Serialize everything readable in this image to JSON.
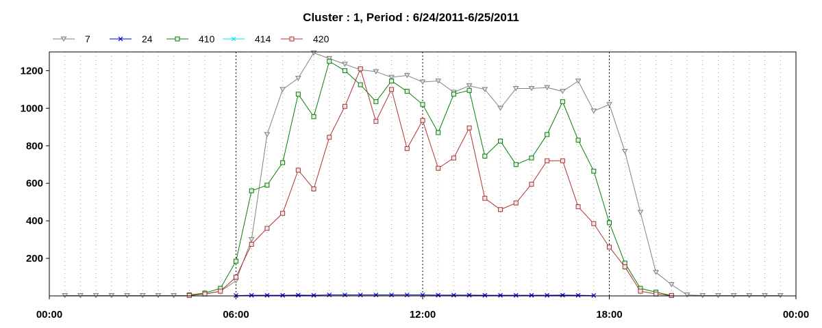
{
  "chart_data": {
    "type": "line",
    "title": "Cluster : 1, Period : 6/24/2011-6/25/2011",
    "xlabel": "",
    "ylabel": "",
    "x_range_hours": [
      0,
      24
    ],
    "xlim_labels": [
      "00:00",
      "24:00"
    ],
    "ylim": [
      0,
      1300
    ],
    "y_ticks": [
      200,
      400,
      600,
      800,
      1000,
      1200
    ],
    "x_tick_hours": [
      0,
      6,
      12,
      18,
      24
    ],
    "x_tick_labels": [
      "00:00",
      "06:00",
      "12:00",
      "18:00",
      "00:00"
    ],
    "x_minor_step_hours": 0.5,
    "grid": "dotted vertical lines every half hour, dashed lines at 06:00, 12:00 and 18:00",
    "legend_position": "top-left",
    "series": [
      {
        "name": "7",
        "color": "#808080",
        "marker": "triangle-down",
        "x": [
          "00:30",
          "01:00",
          "01:30",
          "02:00",
          "02:30",
          "03:00",
          "03:30",
          "04:00",
          "04:30",
          "05:00",
          "05:30",
          "06:00",
          "06:30",
          "07:00",
          "07:30",
          "08:00",
          "08:30",
          "09:00",
          "09:30",
          "10:00",
          "10:30",
          "11:00",
          "11:30",
          "12:00",
          "12:30",
          "13:00",
          "13:30",
          "14:00",
          "14:30",
          "15:00",
          "15:30",
          "16:00",
          "16:30",
          "17:00",
          "17:30",
          "18:00",
          "18:30",
          "19:00",
          "19:30",
          "20:00",
          "20:30",
          "21:00",
          "21:30",
          "22:00",
          "22:30",
          "23:00",
          "23:30"
        ],
        "values": [
          2,
          2,
          2,
          2,
          2,
          2,
          2,
          2,
          2,
          10,
          25,
          80,
          300,
          860,
          1100,
          1160,
          1295,
          1265,
          1235,
          1205,
          1195,
          1165,
          1175,
          1140,
          1145,
          1085,
          1120,
          1100,
          1000,
          1105,
          1105,
          1110,
          1090,
          1145,
          985,
          1020,
          770,
          445,
          125,
          60,
          5,
          2,
          2,
          2,
          2,
          2,
          2
        ]
      },
      {
        "name": "24",
        "color": "#0000cc",
        "marker": "x",
        "x": [
          "06:00",
          "06:30",
          "07:00",
          "07:30",
          "08:00",
          "08:30",
          "09:00",
          "09:30",
          "10:00",
          "10:30",
          "11:00",
          "11:30",
          "12:00",
          "12:30",
          "13:00",
          "13:30",
          "14:00",
          "14:30",
          "15:00",
          "15:30",
          "16:00",
          "16:30",
          "17:00",
          "17:30"
        ],
        "values": [
          2,
          3,
          3,
          3,
          4,
          3,
          5,
          5,
          5,
          5,
          5,
          5,
          5,
          4,
          4,
          4,
          3,
          3,
          3,
          3,
          3,
          4,
          3,
          2
        ]
      },
      {
        "name": "410",
        "color": "#008000",
        "marker": "square",
        "x": [
          "04:30",
          "05:00",
          "05:30",
          "06:00",
          "06:30",
          "07:00",
          "07:30",
          "08:00",
          "08:30",
          "09:00",
          "09:30",
          "10:00",
          "10:30",
          "11:00",
          "11:30",
          "12:00",
          "12:30",
          "13:00",
          "13:30",
          "14:00",
          "14:30",
          "15:00",
          "15:30",
          "16:00",
          "16:30",
          "17:00",
          "17:30",
          "18:00",
          "18:30",
          "19:00",
          "19:30",
          "20:00"
        ],
        "values": [
          5,
          15,
          40,
          185,
          560,
          590,
          710,
          1075,
          955,
          1250,
          1200,
          1125,
          1035,
          1145,
          1090,
          1020,
          870,
          1075,
          1095,
          745,
          825,
          700,
          735,
          860,
          1035,
          830,
          665,
          390,
          175,
          40,
          20,
          2
        ]
      },
      {
        "name": "414",
        "color": "#00e5e5",
        "marker": "x",
        "x": [],
        "values": []
      },
      {
        "name": "420",
        "color": "#b03030",
        "marker": "square",
        "x": [
          "04:30",
          "05:00",
          "05:30",
          "06:00",
          "06:30",
          "07:00",
          "07:30",
          "08:00",
          "08:30",
          "09:00",
          "09:30",
          "10:00",
          "10:30",
          "11:00",
          "11:30",
          "12:00",
          "12:30",
          "13:00",
          "13:30",
          "14:00",
          "14:30",
          "15:00",
          "15:30",
          "16:00",
          "16:30",
          "17:00",
          "17:30",
          "18:00",
          "18:30",
          "19:00",
          "19:30",
          "20:00"
        ],
        "values": [
          2,
          10,
          25,
          100,
          275,
          360,
          440,
          670,
          570,
          845,
          1010,
          1210,
          930,
          1100,
          785,
          935,
          680,
          735,
          895,
          520,
          460,
          495,
          595,
          720,
          720,
          475,
          385,
          260,
          155,
          25,
          10,
          2
        ]
      }
    ]
  }
}
